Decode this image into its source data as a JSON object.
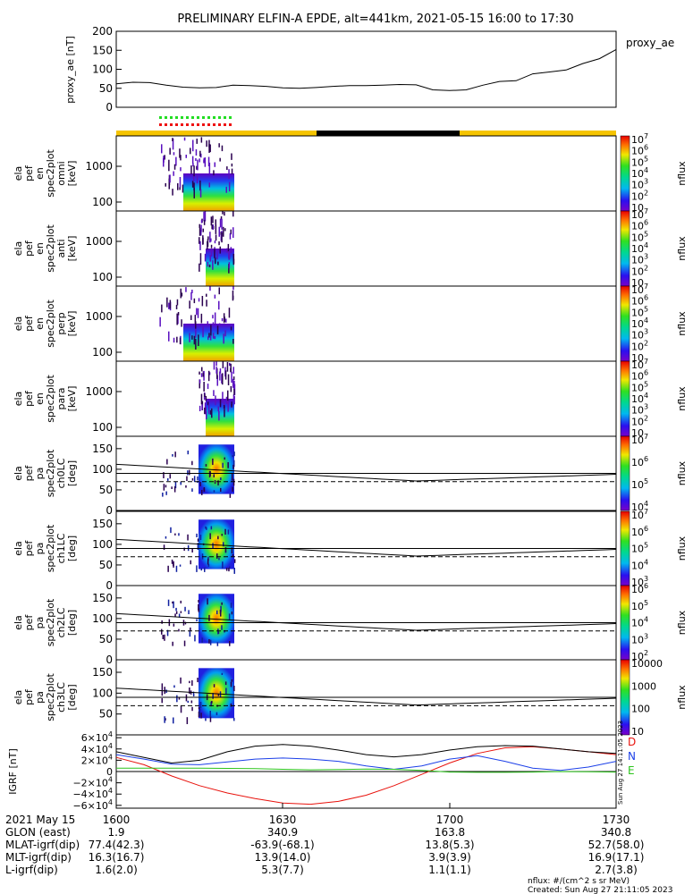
{
  "title": "PRELIMINARY ELFIN-A EPDE, alt=441km, 2021-05-15 16:00 to 17:30",
  "proxy_ae": {
    "ylabel": "proxy_ae [nT]",
    "legend": "proxy_ae",
    "yticks": [
      "200",
      "150",
      "100",
      "50",
      "0"
    ]
  },
  "spec_panels": [
    {
      "ylabel": [
        "ela",
        "pef",
        "en",
        "spec2plot",
        "omni",
        "[keV]"
      ],
      "yticks": [
        "1000",
        "100"
      ],
      "cb_label": "nflux",
      "cb_ticks": [
        "10^7",
        "10^6",
        "10^5",
        "10^4",
        "10^3",
        "10^2",
        "10"
      ]
    },
    {
      "ylabel": [
        "ela",
        "pef",
        "en",
        "spec2plot",
        "anti",
        "[keV]"
      ],
      "yticks": [
        "1000",
        "100"
      ],
      "cb_label": "nflux",
      "cb_ticks": [
        "10^7",
        "10^6",
        "10^5",
        "10^4",
        "10^3",
        "10^2",
        "10"
      ]
    },
    {
      "ylabel": [
        "ela",
        "pef",
        "en",
        "spec2plot",
        "perp",
        "[keV]"
      ],
      "yticks": [
        "1000",
        "100"
      ],
      "cb_label": "nflux",
      "cb_ticks": [
        "10^7",
        "10^6",
        "10^5",
        "10^4",
        "10^3",
        "10^2",
        "10"
      ]
    },
    {
      "ylabel": [
        "ela",
        "pef",
        "en",
        "spec2plot",
        "para",
        "[keV]"
      ],
      "yticks": [
        "1000",
        "100"
      ],
      "cb_label": "nflux",
      "cb_ticks": [
        "10^7",
        "10^6",
        "10^5",
        "10^4",
        "10^3",
        "10^2",
        "10"
      ]
    }
  ],
  "pa_panels": [
    {
      "ylabel": [
        "ela",
        "pef",
        "pa",
        "spec2plot",
        "ch0LC",
        "[deg]"
      ],
      "yticks": [
        "150",
        "100",
        "50",
        "0"
      ],
      "cb_label": "nflux",
      "cb_ticks": [
        "10^7",
        "10^6",
        "10^5",
        "10^4"
      ]
    },
    {
      "ylabel": [
        "ela",
        "pef",
        "pa",
        "spec2plot",
        "ch1LC",
        "[deg]"
      ],
      "yticks": [
        "150",
        "100",
        "50",
        "0"
      ],
      "cb_label": "nflux",
      "cb_ticks": [
        "10^7",
        "10^6",
        "10^5",
        "10^4",
        "10^3"
      ]
    },
    {
      "ylabel": [
        "ela",
        "pef",
        "pa",
        "spec2plot",
        "ch2LC",
        "[deg]"
      ],
      "yticks": [
        "150",
        "100",
        "50",
        "0"
      ],
      "cb_label": "nflux",
      "cb_ticks": [
        "10^6",
        "10^5",
        "10^4",
        "10^3",
        "10^2"
      ]
    },
    {
      "ylabel": [
        "ela",
        "pef",
        "pa",
        "spec2plot",
        "ch3LC",
        "[deg]"
      ],
      "yticks": [
        "150",
        "100",
        "50"
      ],
      "cb_label": "nflux",
      "cb_ticks": [
        "10000",
        "1000",
        "100",
        "10"
      ]
    }
  ],
  "igrf": {
    "ylabel": "IGRF [nT]",
    "yticks": [
      "6×10^4",
      "4×10^4",
      "2×10^4",
      "0",
      "−2×10^4",
      "−4×10^4",
      "−6×10^4"
    ],
    "legend": [
      {
        "name": "D",
        "color": "#e8120c"
      },
      {
        "name": "N",
        "color": "#1b3fe8"
      },
      {
        "name": "E",
        "color": "#2cc41c"
      }
    ],
    "side_stamp": "Sun Aug 27 14:11:05 2023"
  },
  "ephemeris": {
    "row_labels": [
      "2021 May 15",
      "GLON (east)",
      "MLAT-igrf(dip)",
      "MLT-igrf(dip)",
      "L-igrf(dip)"
    ],
    "columns": [
      {
        "time": "1600",
        "values": [
          "1.9",
          "77.4(42.3)",
          "16.3(16.7)",
          "1.6(2.0)"
        ]
      },
      {
        "time": "1630",
        "values": [
          "340.9",
          "-63.9(-68.1)",
          "13.9(14.0)",
          "5.3(7.7)"
        ]
      },
      {
        "time": "1700",
        "values": [
          "163.8",
          "13.8(5.3)",
          "3.9(3.9)",
          "1.1(1.1)"
        ]
      },
      {
        "time": "1730",
        "values": [
          "340.8",
          "52.7(58.0)",
          "16.9(17.1)",
          "2.7(3.8)"
        ]
      }
    ]
  },
  "footer": {
    "units": "nflux: #/(cm^2 s sr MeV)",
    "created": "Created: Sun Aug 27 21:11:05 2023"
  },
  "colors": {
    "status_bar_yellow": "#f5c400",
    "status_bar_black": "#000000",
    "marker_green": "#22dd22",
    "marker_red": "#ee1111"
  },
  "chart_data": [
    {
      "type": "line",
      "title": "proxy_ae",
      "x_minutes": [
        0,
        3,
        6,
        9,
        12,
        15,
        18,
        21,
        24,
        27,
        30,
        33,
        36,
        39,
        42,
        45,
        48,
        51,
        54,
        57,
        60,
        63,
        66,
        69,
        72,
        75,
        78,
        81,
        84,
        87,
        90
      ],
      "values": [
        62,
        66,
        65,
        58,
        53,
        51,
        52,
        58,
        57,
        55,
        51,
        50,
        52,
        55,
        57,
        57,
        58,
        60,
        59,
        46,
        44,
        46,
        58,
        68,
        70,
        88,
        93,
        98,
        115,
        128,
        152
      ],
      "xlabel": "",
      "ylabel": "proxy_ae [nT]",
      "ylim": [
        0,
        200
      ],
      "xlim": [
        0,
        90
      ]
    },
    {
      "type": "line",
      "title": "IGRF",
      "x_minutes": [
        0,
        5,
        10,
        15,
        20,
        25,
        30,
        35,
        40,
        45,
        50,
        55,
        60,
        65,
        70,
        75,
        80,
        85,
        90
      ],
      "series": [
        {
          "name": "D",
          "values": [
            25000,
            12000,
            -8000,
            -25000,
            -38000,
            -48000,
            -56000,
            -58000,
            -53000,
            -42000,
            -25000,
            -5000,
            15000,
            32000,
            42000,
            44000,
            40000,
            35000,
            30000
          ]
        },
        {
          "name": "N",
          "values": [
            30000,
            22000,
            13000,
            12000,
            17000,
            22000,
            24000,
            22000,
            18000,
            10000,
            4000,
            10000,
            22000,
            28000,
            18000,
            6000,
            2000,
            8000,
            18000
          ]
        },
        {
          "name": "E",
          "values": [
            6000,
            6000,
            6000,
            6000,
            5500,
            5000,
            4000,
            3000,
            3500,
            4500,
            4000,
            2000,
            -1000,
            -1500,
            -1500,
            -1000,
            0,
            -500,
            -1000
          ]
        },
        {
          "name": "total",
          "values": [
            35000,
            25000,
            15000,
            20000,
            35000,
            45000,
            48000,
            45000,
            38000,
            30000,
            26000,
            30000,
            38000,
            44000,
            46000,
            45000,
            40000,
            35000,
            32000
          ]
        }
      ],
      "xlabel": "",
      "ylabel": "IGRF [nT]",
      "ylim": [
        -65000,
        65000
      ],
      "xlim": [
        0,
        90
      ]
    }
  ]
}
